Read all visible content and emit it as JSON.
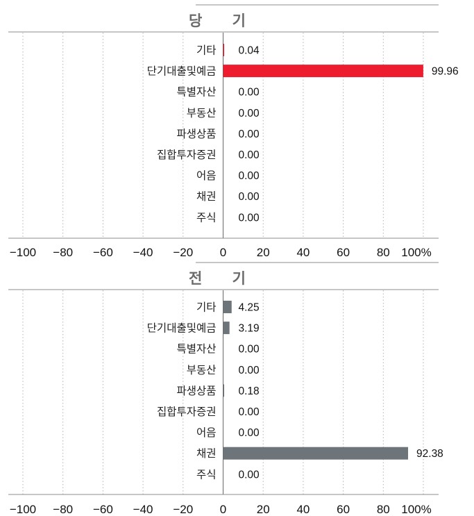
{
  "unit_suffix": "%",
  "chart_data": [
    {
      "type": "bar",
      "orientation": "horizontal",
      "title": "당 기",
      "categories": [
        "기타",
        "단기대출및예금",
        "특별자산",
        "부동산",
        "파생상품",
        "집합투자증권",
        "어음",
        "채권",
        "주식"
      ],
      "values": [
        0.04,
        99.96,
        0.0,
        0.0,
        0.0,
        0.0,
        0.0,
        0.0,
        0.0
      ],
      "value_labels": [
        "0.04",
        "99.96",
        "0.00",
        "0.00",
        "0.00",
        "0.00",
        "0.00",
        "0.00",
        "0.00"
      ],
      "xlim": [
        -100,
        100
      ],
      "xticks": [
        -100,
        -80,
        -60,
        -40,
        -20,
        0,
        20,
        40,
        60,
        80,
        100
      ],
      "grid": "vertical dotted",
      "bar_color": "#ed1c2e"
    },
    {
      "type": "bar",
      "orientation": "horizontal",
      "title": "전 기",
      "categories": [
        "기타",
        "단기대출및예금",
        "특별자산",
        "부동산",
        "파생상품",
        "집합투자증권",
        "어음",
        "채권",
        "주식"
      ],
      "values": [
        4.25,
        3.19,
        0.0,
        0.0,
        0.18,
        0.0,
        0.0,
        92.38,
        0.0
      ],
      "value_labels": [
        "4.25",
        "3.19",
        "0.00",
        "0.00",
        "0.18",
        "0.00",
        "0.00",
        "92.38",
        "0.00"
      ],
      "xlim": [
        -100,
        100
      ],
      "xticks": [
        -100,
        -80,
        -60,
        -40,
        -20,
        0,
        20,
        40,
        60,
        80,
        100
      ],
      "grid": "vertical dotted",
      "bar_color": "#6d757b"
    }
  ]
}
